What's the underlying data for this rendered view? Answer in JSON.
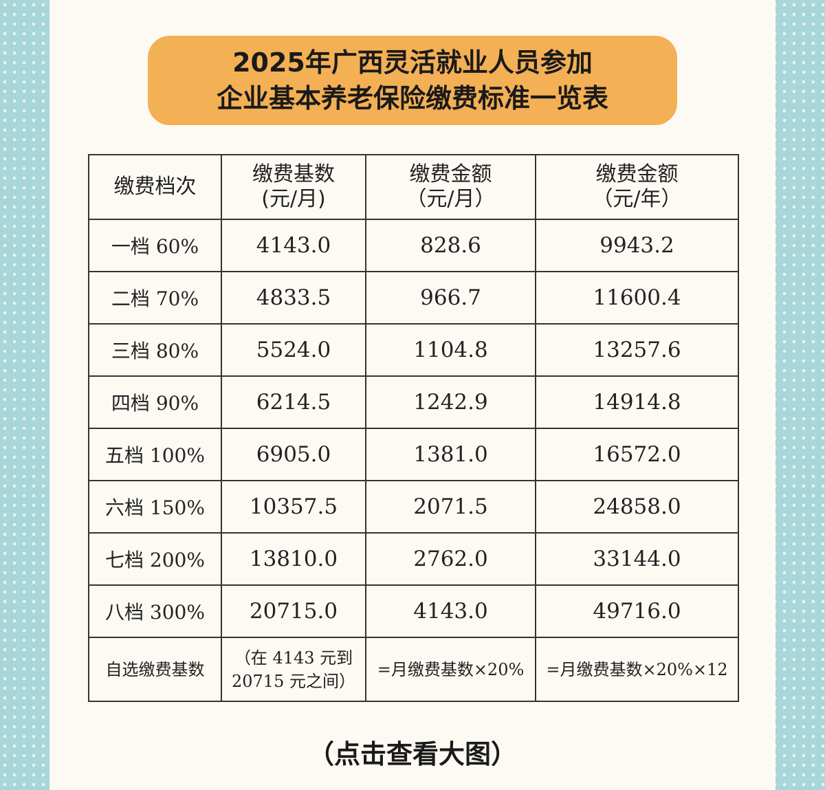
{
  "header": {
    "title": [
      "2025年广西灵活就业人员参加",
      "企业基本养老保险缴费标准一览表"
    ]
  },
  "table": {
    "header": [
      [
        "缴费档次"
      ],
      [
        "缴费基数",
        "(元/月)"
      ],
      [
        "缴费金额",
        "（元/月）"
      ],
      [
        "缴费金额",
        "（元/年）"
      ]
    ],
    "rows": [
      [
        "一档 60%",
        "4143.0",
        "828.6",
        "9943.2"
      ],
      [
        "二档 70%",
        "4833.5",
        "966.7",
        "11600.4"
      ],
      [
        "三档 80%",
        "5524.0",
        "1104.8",
        "13257.6"
      ],
      [
        "四档 90%",
        "6214.5",
        "1242.9",
        "14914.8"
      ],
      [
        "五档 100%",
        "6905.0",
        "1381.0",
        "16572.0"
      ],
      [
        "六档 150%",
        "10357.5",
        "2071.5",
        "24858.0"
      ],
      [
        "七档 200%",
        "13810.0",
        "2762.0",
        "33144.0"
      ],
      [
        "八档 300%",
        "20715.0",
        "4143.0",
        "49716.0"
      ],
      [
        "自选缴费基数",
        [
          "（在 4143 元到",
          "20715 元之间）"
        ],
        "=月缴费基数×20%",
        "=月缴费基数×20%×12"
      ]
    ]
  },
  "footer": {
    "link": "（点击查看大图）"
  }
}
